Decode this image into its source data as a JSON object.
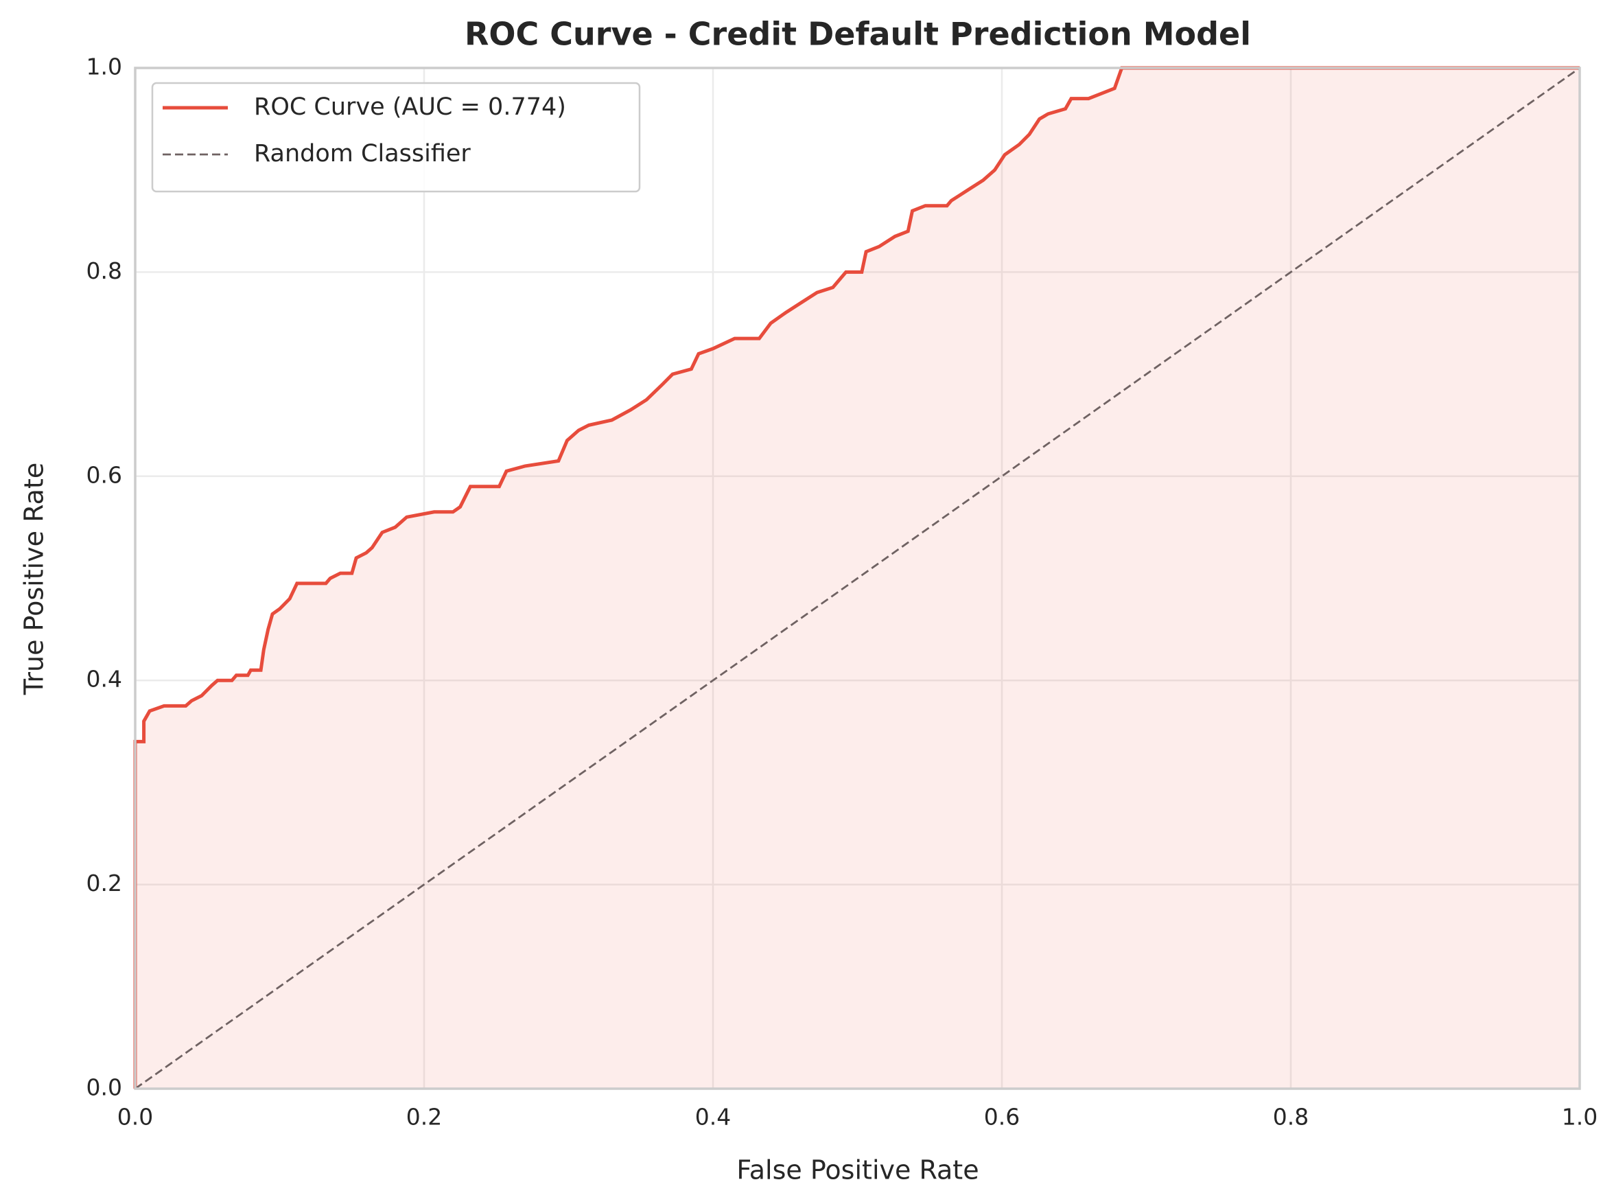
{
  "chart_data": {
    "type": "line",
    "title": "ROC Curve - Credit Default Prediction Model",
    "x_label": "False Positive Rate",
    "y_label": "True Positive Rate",
    "xlim": [
      0,
      1
    ],
    "ylim": [
      0,
      1
    ],
    "xticks": [
      {
        "value": 0,
        "label": "0.0"
      },
      0.2,
      0.4,
      0.6,
      0.8,
      {
        "value": 1,
        "label": "1.0"
      }
    ],
    "yticks": [
      {
        "value": 0,
        "label": "0.0"
      },
      0.2,
      0.4,
      0.6,
      0.8,
      {
        "value": 1,
        "label": "1.0"
      }
    ],
    "grid": true,
    "legend": "upper left",
    "series": [
      {
        "name": "ROC Curve (AUC = 0.774)",
        "color": "#e74c3c",
        "fill": true,
        "x": [
          0,
          0,
          0.006,
          0.006,
          0.01,
          0.02,
          0.035,
          0.039,
          0.046,
          0.053,
          0.057,
          0.067,
          0.07,
          0.078,
          0.08,
          0.087,
          0.089,
          0.092,
          0.095,
          0.1,
          0.107,
          0.112,
          0.132,
          0.135,
          0.142,
          0.15,
          0.153,
          0.16,
          0.164,
          0.171,
          0.18,
          0.188,
          0.207,
          0.22,
          0.225,
          0.232,
          0.252,
          0.257,
          0.27,
          0.293,
          0.299,
          0.307,
          0.314,
          0.33,
          0.343,
          0.354,
          0.365,
          0.372,
          0.385,
          0.39,
          0.4,
          0.415,
          0.432,
          0.44,
          0.45,
          0.461,
          0.472,
          0.483,
          0.492,
          0.503,
          0.506,
          0.515,
          0.526,
          0.535,
          0.538,
          0.547,
          0.562,
          0.565,
          0.576,
          0.587,
          0.595,
          0.602,
          0.612,
          0.619,
          0.626,
          0.632,
          0.644,
          0.648,
          0.66,
          0.669,
          0.678,
          0.683,
          1
        ],
        "values": [
          0,
          0.34,
          0.34,
          0.36,
          0.37,
          0.375,
          0.375,
          0.38,
          0.385,
          0.395,
          0.4,
          0.4,
          0.405,
          0.405,
          0.41,
          0.41,
          0.43,
          0.45,
          0.465,
          0.47,
          0.48,
          0.495,
          0.495,
          0.5,
          0.505,
          0.505,
          0.52,
          0.525,
          0.53,
          0.545,
          0.55,
          0.56,
          0.565,
          0.565,
          0.57,
          0.59,
          0.59,
          0.605,
          0.61,
          0.615,
          0.635,
          0.645,
          0.65,
          0.655,
          0.665,
          0.675,
          0.69,
          0.7,
          0.705,
          0.72,
          0.725,
          0.735,
          0.735,
          0.75,
          0.76,
          0.77,
          0.78,
          0.785,
          0.8,
          0.8,
          0.82,
          0.825,
          0.835,
          0.84,
          0.86,
          0.865,
          0.865,
          0.87,
          0.88,
          0.89,
          0.9,
          0.915,
          0.925,
          0.935,
          0.95,
          0.955,
          0.96,
          0.97,
          0.97,
          0.975,
          0.98,
          1,
          1
        ]
      },
      {
        "name": "Random Classifier",
        "color": "#6f6262",
        "dashed": true,
        "x": [
          0,
          1
        ],
        "values": [
          0,
          1
        ]
      }
    ]
  }
}
